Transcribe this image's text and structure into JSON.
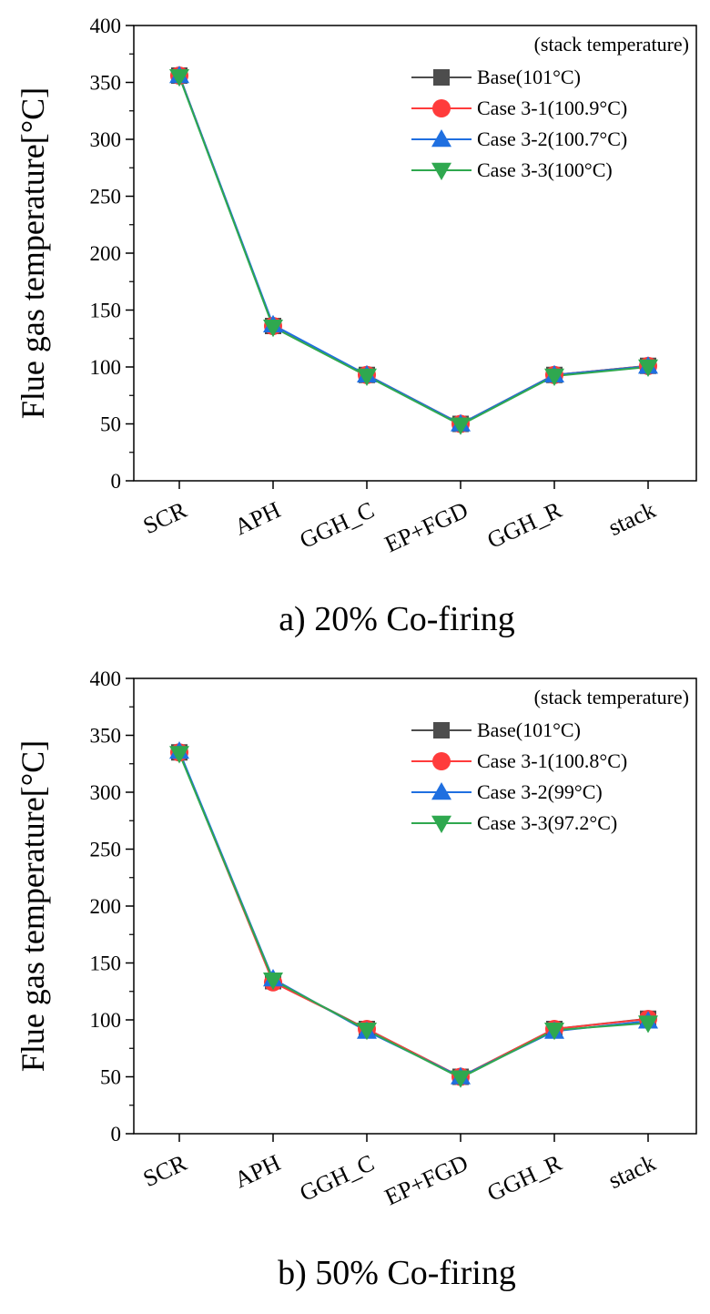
{
  "chart_data": [
    {
      "type": "line",
      "title": "a) 20% Co-firing",
      "xlabel": "",
      "ylabel": "Flue gas temperature[°C]",
      "ylim": [
        0,
        400
      ],
      "yticks": [
        0,
        50,
        100,
        150,
        200,
        250,
        300,
        350,
        400
      ],
      "categories": [
        "SCR",
        "APH",
        "GGH_C",
        "EP+FGD",
        "GGH_R",
        "stack"
      ],
      "legend_title": "(stack temperature)",
      "legend_position": "top-right",
      "series": [
        {
          "name": "Base(101°C)",
          "color": "#4d4d4d",
          "marker": "square",
          "values": [
            356,
            136,
            93,
            50,
            93,
            101
          ]
        },
        {
          "name": "Case 3-1(100.9°C)",
          "color": "#ff3b3b",
          "marker": "circle",
          "values": [
            356,
            136,
            93,
            50,
            93,
            100.9
          ]
        },
        {
          "name": "Case 3-2(100.7°C)",
          "color": "#1f6fe0",
          "marker": "triangle-up",
          "values": [
            356,
            137,
            93,
            50,
            93,
            100.7
          ]
        },
        {
          "name": "Case 3-3(100°C)",
          "color": "#2fa84f",
          "marker": "triangle-down",
          "values": [
            355,
            135,
            92,
            49,
            92,
            100
          ]
        }
      ]
    },
    {
      "type": "line",
      "title": "b) 50% Co-firing",
      "xlabel": "",
      "ylabel": "Flue gas temperature[°C]",
      "ylim": [
        0,
        400
      ],
      "yticks": [
        0,
        50,
        100,
        150,
        200,
        250,
        300,
        350,
        400
      ],
      "categories": [
        "SCR",
        "APH",
        "GGH_C",
        "EP+FGD",
        "GGH_R",
        "stack"
      ],
      "legend_title": "(stack temperature)",
      "legend_position": "top-right",
      "series": [
        {
          "name": "Base(101°C)",
          "color": "#4d4d4d",
          "marker": "square",
          "values": [
            335,
            134,
            92,
            50,
            92,
            101
          ]
        },
        {
          "name": "Case 3-1(100.8°C)",
          "color": "#ff3b3b",
          "marker": "circle",
          "values": [
            335,
            133,
            92,
            50,
            92,
            100.8
          ]
        },
        {
          "name": "Case 3-2(99°C)",
          "color": "#1f6fe0",
          "marker": "triangle-up",
          "values": [
            336,
            136,
            90,
            50,
            90,
            99
          ]
        },
        {
          "name": "Case 3-3(97.2°C)",
          "color": "#2fa84f",
          "marker": "triangle-down",
          "values": [
            334,
            135,
            91,
            49,
            91,
            97.2
          ]
        }
      ]
    }
  ]
}
